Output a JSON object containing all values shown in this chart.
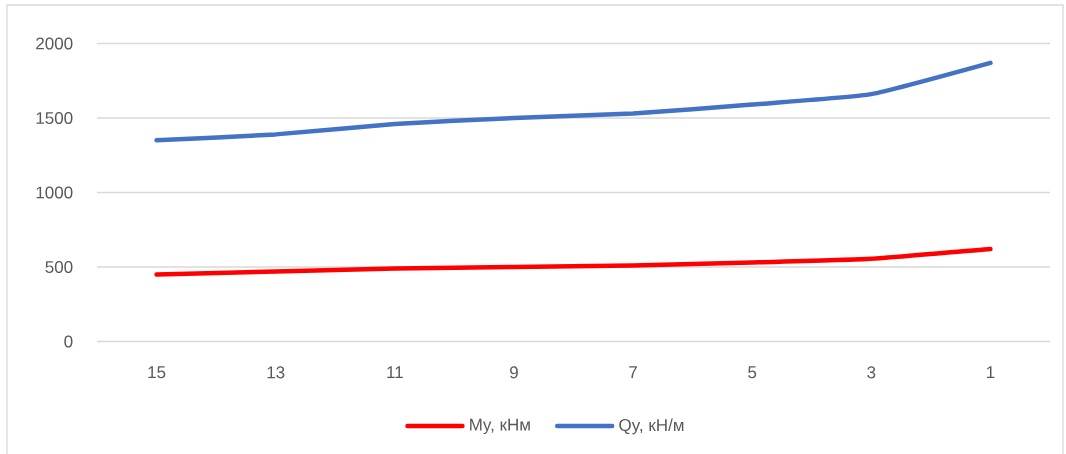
{
  "chart_data": {
    "type": "line",
    "categories": [
      "15",
      "13",
      "11",
      "9",
      "7",
      "5",
      "3",
      "1"
    ],
    "series": [
      {
        "name": "My, кНм",
        "color": "#ff0000",
        "values": [
          450,
          470,
          490,
          500,
          510,
          530,
          555,
          620
        ]
      },
      {
        "name": "Qy, кН/м",
        "color": "#4472c4",
        "values": [
          1350,
          1390,
          1460,
          1500,
          1530,
          1590,
          1660,
          1870
        ]
      }
    ],
    "ylim": [
      0,
      2000
    ],
    "yticks": [
      0,
      500,
      1000,
      1500,
      2000
    ],
    "grid": "y",
    "legend": "bottom",
    "line_style": "solid"
  }
}
